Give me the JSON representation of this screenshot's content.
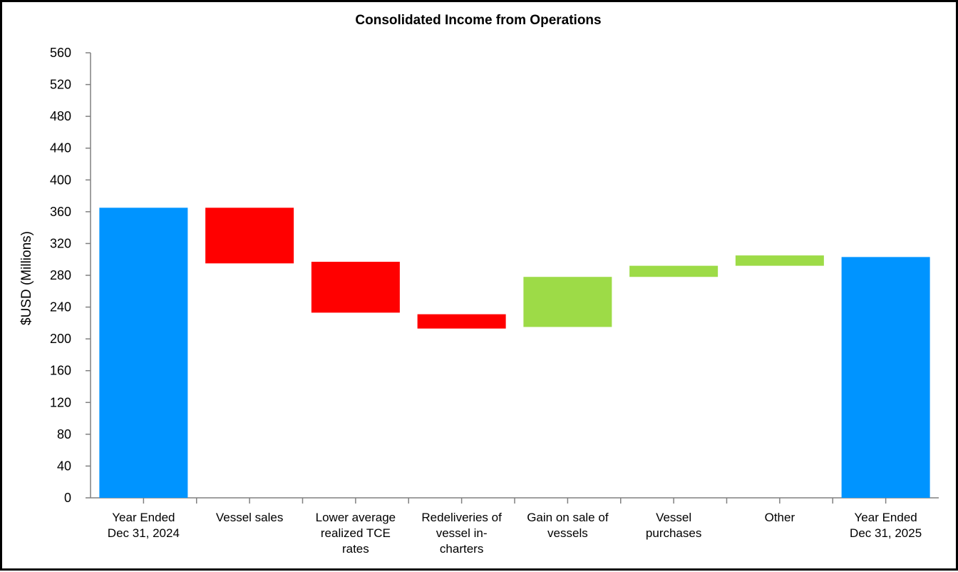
{
  "chart_data": {
    "type": "bar",
    "subtype": "waterfall",
    "title": "Consolidated Income from  Operations",
    "xlabel": "",
    "ylabel": "$USD (Millions)",
    "ylim": [
      0,
      560
    ],
    "yticks": [
      0,
      40,
      80,
      120,
      160,
      200,
      240,
      280,
      320,
      360,
      400,
      440,
      480,
      520,
      560
    ],
    "grid": false,
    "legend": "none",
    "categories": [
      [
        "Year Ended",
        "Dec 31, 2024"
      ],
      [
        "Vessel sales"
      ],
      [
        "Lower average",
        "realized TCE",
        "rates"
      ],
      [
        "Redeliveries of",
        "vessel in-",
        "charters"
      ],
      [
        "Gain on sale of",
        "vessels"
      ],
      [
        "Vessel",
        "purchases"
      ],
      [
        "Other"
      ],
      [
        "Year Ended",
        "Dec 31, 2025"
      ]
    ],
    "bars": [
      {
        "kind": "total",
        "start": 0,
        "end": 365
      },
      {
        "kind": "decrease",
        "start": 365,
        "end": 295
      },
      {
        "kind": "decrease",
        "start": 297,
        "end": 233
      },
      {
        "kind": "decrease",
        "start": 231,
        "end": 213
      },
      {
        "kind": "increase",
        "start": 215,
        "end": 278
      },
      {
        "kind": "increase",
        "start": 278,
        "end": 292
      },
      {
        "kind": "increase",
        "start": 292,
        "end": 305
      },
      {
        "kind": "total",
        "start": 0,
        "end": 303
      }
    ],
    "colors": {
      "total": "#0094ff",
      "decrease": "#ff0000",
      "increase": "#9ddb47"
    }
  }
}
